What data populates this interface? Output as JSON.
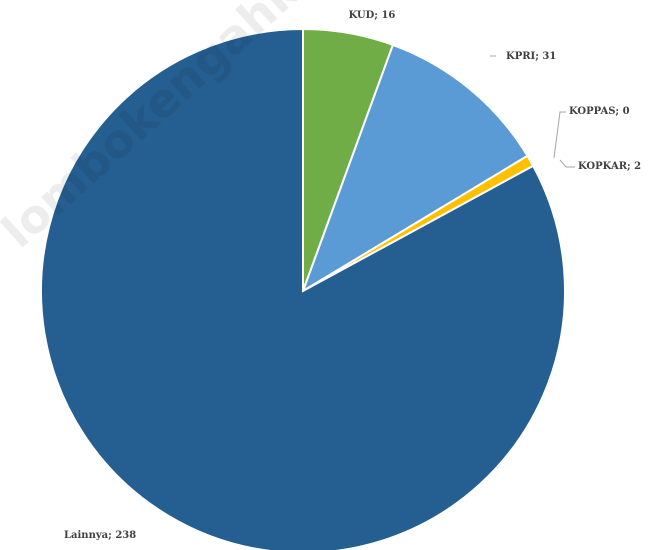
{
  "chart_data": {
    "type": "pie",
    "title": "",
    "start_angle_deg": 0,
    "direction": "clockwise",
    "slices": [
      {
        "label": "KUD",
        "value": 16,
        "color": "#70AD47",
        "data_label": "KUD; 16"
      },
      {
        "label": "KPRI",
        "value": 31,
        "color": "#5B9BD5",
        "data_label": "KPRI; 31"
      },
      {
        "label": "KOPPAS",
        "value": 0,
        "color": "#A5A5A5",
        "data_label": "KOPPAS; 0"
      },
      {
        "label": "KOPKAR",
        "value": 2,
        "color": "#FFC000",
        "data_label": "KOPKAR; 2"
      },
      {
        "label": "Lainnya",
        "value": 238,
        "color": "#255E91",
        "data_label": "Lainnya; 238"
      }
    ],
    "legend": "none"
  },
  "watermark": {
    "text": "lombokengahkab"
  }
}
